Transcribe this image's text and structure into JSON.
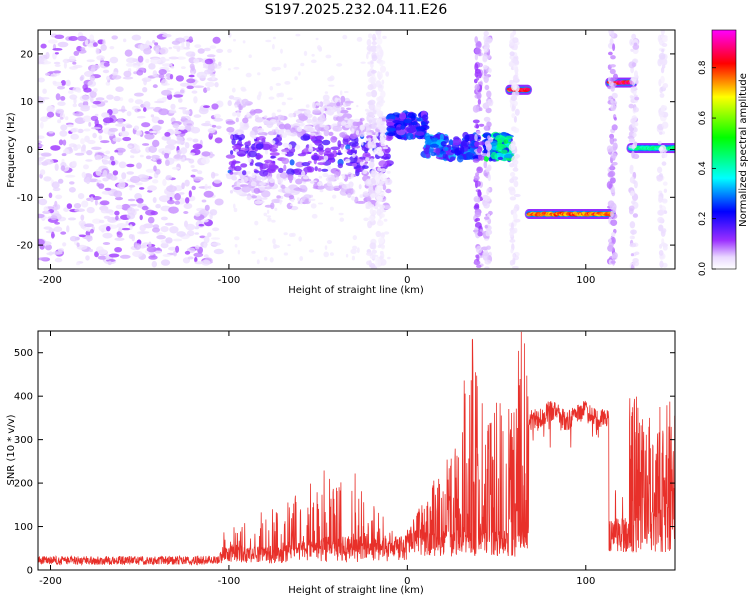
{
  "title": "S197.2025.232.04.11.E26",
  "chart_data": [
    {
      "type": "heatmap",
      "name": "spectrogram",
      "xlabel": "Height of straight line (km)",
      "ylabel": "Frequency (Hz)",
      "xlim": [
        -207,
        150
      ],
      "ylim": [
        -25,
        25
      ],
      "xticks": [
        -200,
        -100,
        0,
        100
      ],
      "yticks": [
        -20,
        -10,
        0,
        10,
        20
      ],
      "colorbar": {
        "label": "Normalized spectral amplitude",
        "range": [
          0,
          0.95
        ],
        "ticks": [
          0.0,
          0.2,
          0.4,
          0.6,
          0.8
        ],
        "tick_labels": [
          "0.0",
          "0.2",
          "0.4",
          "0.6",
          "0.8"
        ],
        "colormap": [
          "#ffffff",
          "#9b30ff",
          "#0000ff",
          "#00ffff",
          "#00ff00",
          "#ffff00",
          "#ff0000",
          "#ff00ff"
        ]
      },
      "features": [
        {
          "x_range": [
            -207,
            -105
          ],
          "freq_range": [
            -24,
            24
          ],
          "kind": "noise",
          "amplitude": 0.05
        },
        {
          "x_range": [
            -100,
            -10
          ],
          "freq_range": [
            -12,
            8
          ],
          "kind": "broadband",
          "amplitude": 0.12
        },
        {
          "x_range": [
            -10,
            10
          ],
          "freq_center": 5,
          "kind": "band",
          "amplitude": 0.25
        },
        {
          "x_range": [
            10,
            40
          ],
          "freq_center": 0.5,
          "kind": "band",
          "amplitude": 0.3
        },
        {
          "x_range": [
            44,
            58
          ],
          "freq_center": 0.5,
          "kind": "band",
          "amplitude": 0.45
        },
        {
          "x_range": [
            57,
            68
          ],
          "freq_center": 12.5,
          "kind": "line",
          "amplitude": 0.85
        },
        {
          "x_range": [
            68,
            115
          ],
          "freq_center": -13.5,
          "kind": "line",
          "amplitude": 0.8
        },
        {
          "x_range": [
            113,
            127
          ],
          "freq_center": 14,
          "kind": "line",
          "amplitude": 0.9
        },
        {
          "x_range": [
            125,
            150
          ],
          "freq_center": 0.3,
          "kind": "line",
          "amplitude": 0.45
        }
      ]
    },
    {
      "type": "line",
      "name": "snr",
      "xlabel": "Height of straight line (km)",
      "ylabel": "SNR (10 * v/v)",
      "xlim": [
        -207,
        150
      ],
      "ylim": [
        0,
        550
      ],
      "xticks": [
        -200,
        -100,
        0,
        100
      ],
      "yticks": [
        0,
        100,
        200,
        300,
        400,
        500
      ],
      "color": "#e8302a",
      "series": [
        {
          "name": "SNR",
          "x": [
            -207,
            -150,
            -120,
            -100,
            -80,
            -60,
            -40,
            -20,
            -10,
            0,
            10,
            20,
            30,
            36,
            40,
            50,
            60,
            64,
            70,
            80,
            90,
            100,
            110,
            114,
            120,
            126,
            130,
            140,
            150
          ],
          "y": [
            15,
            15,
            18,
            30,
            60,
            80,
            110,
            80,
            40,
            20,
            100,
            180,
            250,
            540,
            300,
            330,
            300,
            530,
            360,
            370,
            380,
            380,
            370,
            90,
            60,
            340,
            180,
            250,
            400
          ]
        }
      ]
    }
  ]
}
